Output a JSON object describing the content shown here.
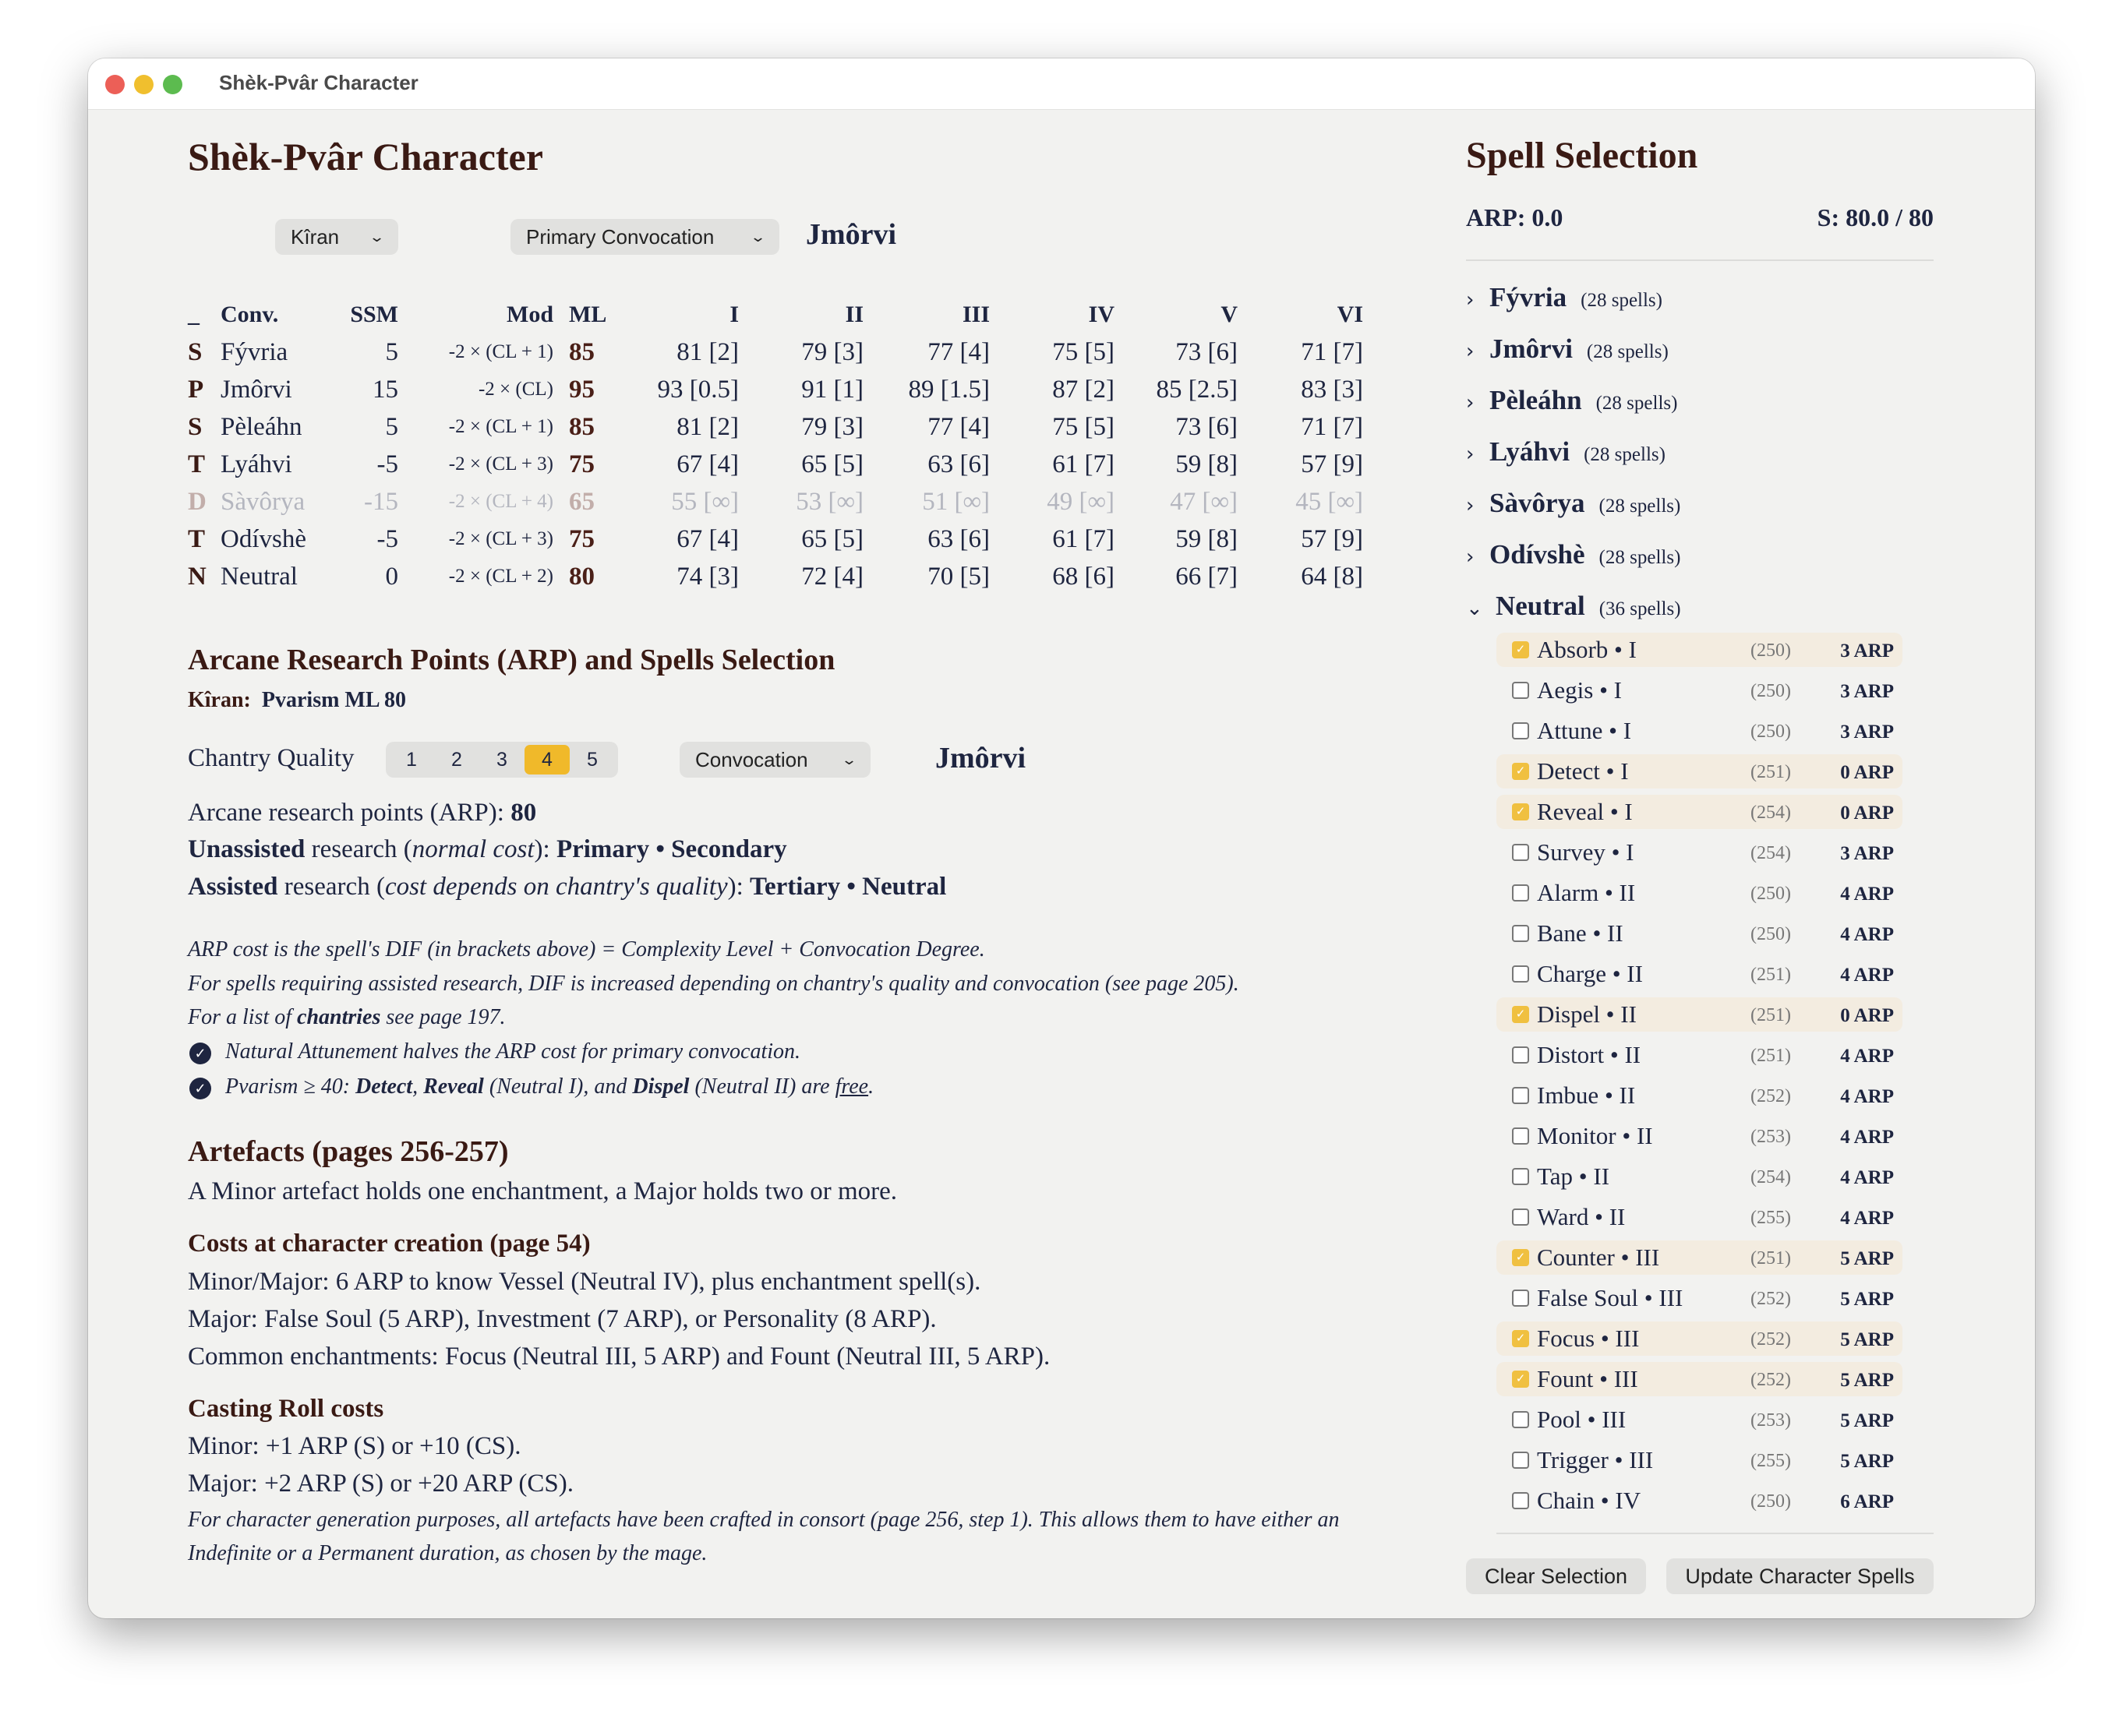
{
  "window": {
    "title": "Shèk-Pvâr Character"
  },
  "main": {
    "title": "Shèk-Pvâr Character",
    "character_select": "Kîran",
    "convocation_select": "Primary Convocation",
    "primary_convocation": "Jmôrvi",
    "table": {
      "headers": [
        "_",
        "Conv.",
        "SSM",
        "Mod",
        "ML",
        "I",
        "II",
        "III",
        "IV",
        "V",
        "VI"
      ],
      "rows": [
        {
          "type": "S",
          "conv": "Fývria",
          "ssm": "5",
          "mod": "-2 × (CL + 1)",
          "ml": "85",
          "levels": [
            "81 [2]",
            "79 [3]",
            "77 [4]",
            "75 [5]",
            "73 [6]",
            "71 [7]"
          ],
          "disabled": false
        },
        {
          "type": "P",
          "conv": "Jmôrvi",
          "ssm": "15",
          "mod": "-2 × (CL)",
          "ml": "95",
          "levels": [
            "93 [0.5]",
            "91 [1]",
            "89 [1.5]",
            "87 [2]",
            "85 [2.5]",
            "83 [3]"
          ],
          "disabled": false
        },
        {
          "type": "S",
          "conv": "Pèleáhn",
          "ssm": "5",
          "mod": "-2 × (CL + 1)",
          "ml": "85",
          "levels": [
            "81 [2]",
            "79 [3]",
            "77 [4]",
            "75 [5]",
            "73 [6]",
            "71 [7]"
          ],
          "disabled": false
        },
        {
          "type": "T",
          "conv": "Lyáhvi",
          "ssm": "-5",
          "mod": "-2 × (CL + 3)",
          "ml": "75",
          "levels": [
            "67 [4]",
            "65 [5]",
            "63 [6]",
            "61 [7]",
            "59 [8]",
            "57 [9]"
          ],
          "disabled": false
        },
        {
          "type": "D",
          "conv": "Sàvôrya",
          "ssm": "-15",
          "mod": "-2 × (CL + 4)",
          "ml": "65",
          "levels": [
            "55 [∞]",
            "53 [∞]",
            "51 [∞]",
            "49 [∞]",
            "47 [∞]",
            "45 [∞]"
          ],
          "disabled": true
        },
        {
          "type": "T",
          "conv": "Odívshè",
          "ssm": "-5",
          "mod": "-2 × (CL + 3)",
          "ml": "75",
          "levels": [
            "67 [4]",
            "65 [5]",
            "63 [6]",
            "61 [7]",
            "59 [8]",
            "57 [9]"
          ],
          "disabled": false
        },
        {
          "type": "N",
          "conv": "Neutral",
          "ssm": "0",
          "mod": "-2 × (CL + 2)",
          "ml": "80",
          "levels": [
            "74 [3]",
            "72 [4]",
            "70 [5]",
            "68 [6]",
            "66 [7]",
            "64 [8]"
          ],
          "disabled": false
        }
      ]
    },
    "arp_section": {
      "title": "Arcane Research Points (ARP) and Spells Selection",
      "character_label": "Kîran:",
      "character_value": "Pvarism ML 80",
      "chantry_label": "Chantry Quality",
      "chantry_options": [
        "1",
        "2",
        "3",
        "4",
        "5"
      ],
      "chantry_selected": "4",
      "convocation_select": "Convocation",
      "convocation_value": "Jmôrvi",
      "lines": [
        [
          [
            "Arcane research points (ARP):  ",
            ""
          ],
          [
            "80",
            "b"
          ]
        ],
        [
          [
            "Unassisted",
            "b"
          ],
          [
            " research (",
            ""
          ],
          [
            "normal cost",
            "i"
          ],
          [
            "): ",
            ""
          ],
          [
            "Primary • Secondary",
            "b"
          ]
        ],
        [
          [
            "Assisted",
            "b"
          ],
          [
            " research (",
            ""
          ],
          [
            "cost depends on chantry's quality",
            "i"
          ],
          [
            "): ",
            ""
          ],
          [
            "Tertiary • Neutral",
            "b"
          ]
        ]
      ],
      "notes": [
        [
          [
            "ARP cost is the spell's DIF (in brackets above) = Complexity Level + Convocation Degree.",
            ""
          ]
        ],
        [
          [
            "For spells requiring assisted research, DIF is increased depending on chantry's quality and convocation (see page 205).",
            ""
          ]
        ],
        [
          [
            "For a list of ",
            ""
          ],
          [
            "chantries",
            "b"
          ],
          [
            " see page 197.",
            ""
          ]
        ]
      ],
      "check_notes": [
        [
          [
            "Natural Attunement halves the ARP cost for primary convocation.",
            ""
          ]
        ],
        [
          [
            "Pvarism ≥ 40: ",
            ""
          ],
          [
            "Detect",
            "b"
          ],
          [
            ", ",
            ""
          ],
          [
            "Reveal",
            "b"
          ],
          [
            " (Neutral I), and ",
            ""
          ],
          [
            "Dispel",
            "b"
          ],
          [
            " (Neutral II) are ",
            ""
          ],
          [
            "free",
            "u"
          ],
          [
            ".",
            ""
          ]
        ]
      ]
    },
    "artefacts": {
      "title": "Artefacts (pages 256-257)",
      "intro": "A Minor artefact holds one enchantment, a Major holds two or more.",
      "costs_title": "Costs at character creation (page 54)",
      "costs": [
        "Minor/Major: 6 ARP to know Vessel (Neutral IV), plus enchantment spell(s).",
        "Major: False Soul (5 ARP), Investment (7 ARP), or Personality (8 ARP).",
        "Common enchantments: Focus (Neutral III, 5 ARP) and Fount (Neutral III, 5 ARP)."
      ],
      "casting_title": "Casting Roll costs",
      "casting": [
        "Minor: +1 ARP (S) or +10 (CS).",
        "Major: +2 ARP (S) or +20 ARP (CS)."
      ],
      "footnote": [
        "For character generation purposes, all artefacts have been crafted in consort (page 256, step 1). This allows them to have either an",
        "Indefinite or a Permanent duration, as chosen by the mage."
      ]
    }
  },
  "spell_panel": {
    "title": "Spell Selection",
    "arp": "ARP: 0.0",
    "s": "S: 80.0 / 80",
    "groups": [
      {
        "name": "Fývria",
        "count": "(28 spells)",
        "expanded": false
      },
      {
        "name": "Jmôrvi",
        "count": "(28 spells)",
        "expanded": false
      },
      {
        "name": "Pèleáhn",
        "count": "(28 spells)",
        "expanded": false
      },
      {
        "name": "Lyáhvi",
        "count": "(28 spells)",
        "expanded": false
      },
      {
        "name": "Sàvôrya",
        "count": "(28 spells)",
        "expanded": false
      },
      {
        "name": "Odívshè",
        "count": "(28 spells)",
        "expanded": false
      },
      {
        "name": "Neutral",
        "count": "(36 spells)",
        "expanded": true
      }
    ],
    "spells": [
      {
        "name": "Absorb • I",
        "dif": "(250)",
        "arp": "3 ARP",
        "checked": true
      },
      {
        "name": "Aegis • I",
        "dif": "(250)",
        "arp": "3 ARP",
        "checked": false
      },
      {
        "name": "Attune • I",
        "dif": "(250)",
        "arp": "3 ARP",
        "checked": false
      },
      {
        "name": "Detect • I",
        "dif": "(251)",
        "arp": "0 ARP",
        "checked": true
      },
      {
        "name": "Reveal • I",
        "dif": "(254)",
        "arp": "0 ARP",
        "checked": true
      },
      {
        "name": "Survey • I",
        "dif": "(254)",
        "arp": "3 ARP",
        "checked": false
      },
      {
        "name": "Alarm • II",
        "dif": "(250)",
        "arp": "4 ARP",
        "checked": false
      },
      {
        "name": "Bane • II",
        "dif": "(250)",
        "arp": "4 ARP",
        "checked": false
      },
      {
        "name": "Charge • II",
        "dif": "(251)",
        "arp": "4 ARP",
        "checked": false
      },
      {
        "name": "Dispel • II",
        "dif": "(251)",
        "arp": "0 ARP",
        "checked": true
      },
      {
        "name": "Distort • II",
        "dif": "(251)",
        "arp": "4 ARP",
        "checked": false
      },
      {
        "name": "Imbue • II",
        "dif": "(252)",
        "arp": "4 ARP",
        "checked": false
      },
      {
        "name": "Monitor • II",
        "dif": "(253)",
        "arp": "4 ARP",
        "checked": false
      },
      {
        "name": "Tap • II",
        "dif": "(254)",
        "arp": "4 ARP",
        "checked": false
      },
      {
        "name": "Ward • II",
        "dif": "(255)",
        "arp": "4 ARP",
        "checked": false
      },
      {
        "name": "Counter • III",
        "dif": "(251)",
        "arp": "5 ARP",
        "checked": true
      },
      {
        "name": "False Soul • III",
        "dif": "(252)",
        "arp": "5 ARP",
        "checked": false
      },
      {
        "name": "Focus • III",
        "dif": "(252)",
        "arp": "5 ARP",
        "checked": true
      },
      {
        "name": "Fount • III",
        "dif": "(252)",
        "arp": "5 ARP",
        "checked": true
      },
      {
        "name": "Pool • III",
        "dif": "(253)",
        "arp": "5 ARP",
        "checked": false
      },
      {
        "name": "Trigger • III",
        "dif": "(255)",
        "arp": "5 ARP",
        "checked": false
      },
      {
        "name": "Chain • IV",
        "dif": "(250)",
        "arp": "6 ARP",
        "checked": false
      }
    ],
    "clear_label": "Clear Selection",
    "update_label": "Update Character Spells"
  },
  "colors": {
    "title": "#3a1a14",
    "text": "#1e2540",
    "accent": "#f0b92a",
    "highlight": "#f3ece0"
  }
}
